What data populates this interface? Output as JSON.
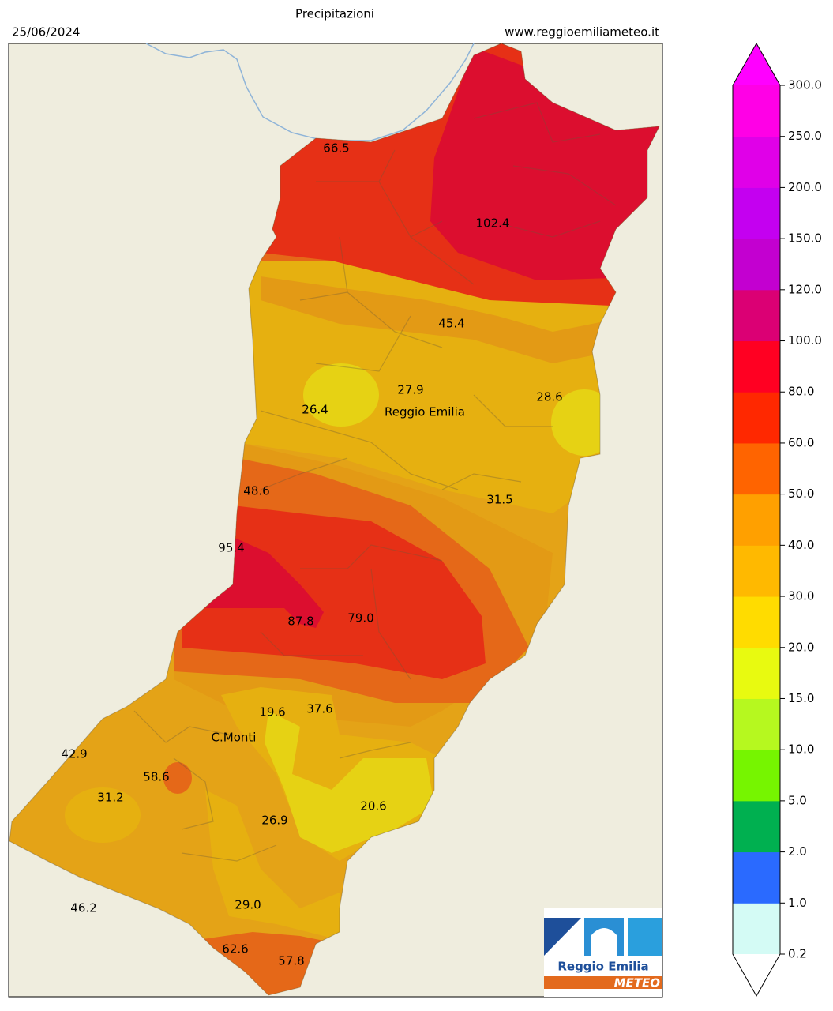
{
  "header": {
    "title": "Precipitazioni",
    "date": "25/06/2024",
    "website": "www.reggioemiliameteo.it"
  },
  "places": [
    "Reggio Emilia",
    "C.Monti"
  ],
  "stations": [
    66.5,
    102.4,
    45.4,
    27.9,
    26.4,
    28.6,
    48.6,
    31.5,
    95.4,
    87.8,
    79.0,
    19.6,
    37.6,
    42.9,
    58.6,
    31.2,
    26.9,
    20.6,
    46.2,
    29.0,
    62.6,
    57.8
  ],
  "station_labels": [
    "66.5",
    "102.4",
    "45.4",
    "27.9",
    "26.4",
    "28.6",
    "48.6",
    "31.5",
    "95.4",
    "87.8",
    "79.0",
    "19.6",
    "37.6",
    "42.9",
    "58.6",
    "31.2",
    "26.9",
    "20.6",
    "46.2",
    "29.0",
    "62.6",
    "57.8"
  ],
  "colorbar": {
    "ticks": [
      {
        "value": 0.2,
        "label": "0.2"
      },
      {
        "value": 1,
        "label": "1.0"
      },
      {
        "value": 2,
        "label": "2.0"
      },
      {
        "value": 5,
        "label": "5.0"
      },
      {
        "value": 10,
        "label": "10.0"
      },
      {
        "value": 15,
        "label": "15.0"
      },
      {
        "value": 20,
        "label": "20.0"
      },
      {
        "value": 30,
        "label": "30.0"
      },
      {
        "value": 40,
        "label": "40.0"
      },
      {
        "value": 50,
        "label": "50.0"
      },
      {
        "value": 60,
        "label": "60.0"
      },
      {
        "value": 80,
        "label": "80.0"
      },
      {
        "value": 100,
        "label": "100.0"
      },
      {
        "value": 120,
        "label": "120.0"
      },
      {
        "value": 150,
        "label": "150.0"
      },
      {
        "value": 200,
        "label": "200.0"
      },
      {
        "value": 250,
        "label": "250.0"
      },
      {
        "value": 300,
        "label": "300.0"
      }
    ],
    "colors": [
      "#d4fbf5",
      "#2a6aff",
      "#00b050",
      "#76f500",
      "#b6f81f",
      "#e8fa10",
      "#ffdc00",
      "#ffb900",
      "#ffa000",
      "#ff6400",
      "#ff2800",
      "#ff0022",
      "#db0074",
      "#c300d0",
      "#c400f0",
      "#e000e8",
      "#ff00e6"
    ],
    "over_color": "#ff00ff",
    "under_color": "#ffffff"
  },
  "logo": {
    "name": "Reggio Emilia",
    "sub": "METEO"
  }
}
